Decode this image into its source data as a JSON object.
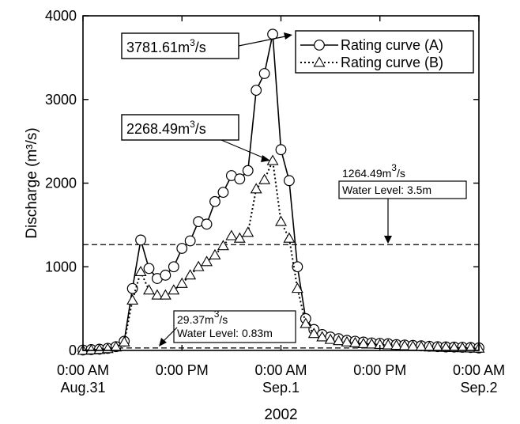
{
  "chart_data": {
    "type": "line",
    "xlabel": "2002",
    "ylabel": "Discharge (m³/s)",
    "ylim": [
      0,
      4000
    ],
    "xlim": [
      "2002-08-31 00:00",
      "2002-09-02 00:00"
    ],
    "y_ticks": [
      "0",
      "1000",
      "2000",
      "3000",
      "4000"
    ],
    "x_ticks": [
      {
        "line1": "0:00 AM",
        "line2": "Aug.31"
      },
      {
        "line1": "0:00 PM",
        "line2": ""
      },
      {
        "line1": "0:00 AM",
        "line2": "Sep.1"
      },
      {
        "line1": "0:00 PM",
        "line2": ""
      },
      {
        "line1": "0:00 AM",
        "line2": "Sep.2"
      }
    ],
    "legend_position": "top-right",
    "series": [
      {
        "name": "Rating curve (A)",
        "marker": "circle",
        "line_style": "solid",
        "x": [
          0,
          1,
          2,
          3,
          4,
          5,
          6,
          7,
          8,
          9,
          10,
          11,
          12,
          13,
          14,
          15,
          16,
          17,
          18,
          19,
          20,
          21,
          22,
          23,
          24,
          25,
          26,
          27,
          28,
          29,
          30,
          31,
          32,
          33,
          34,
          35,
          36,
          37,
          38,
          39,
          40,
          41,
          42,
          43,
          44,
          45,
          46,
          47,
          48
        ],
        "y": [
          5,
          10,
          15,
          25,
          45,
          110,
          740,
          1320,
          980,
          860,
          900,
          1000,
          1220,
          1310,
          1540,
          1510,
          1780,
          1890,
          2090,
          2050,
          2150,
          3110,
          3310,
          3780,
          2400,
          2030,
          1000,
          380,
          250,
          190,
          160,
          140,
          120,
          110,
          100,
          90,
          85,
          80,
          70,
          65,
          60,
          55,
          50,
          45,
          42,
          40,
          38,
          35,
          30
        ]
      },
      {
        "name": "Rating curve (B)",
        "marker": "triangle",
        "line_style": "dotted",
        "x": [
          0,
          1,
          2,
          3,
          4,
          5,
          6,
          7,
          8,
          9,
          10,
          11,
          12,
          13,
          14,
          15,
          16,
          17,
          18,
          19,
          20,
          21,
          22,
          23,
          24,
          25,
          26,
          27,
          28,
          29,
          30,
          31,
          32,
          33,
          34,
          35,
          36,
          37,
          38,
          39,
          40,
          41,
          42,
          43,
          44,
          45,
          46,
          47,
          48
        ],
        "y": [
          0,
          5,
          10,
          20,
          40,
          100,
          600,
          940,
          720,
          660,
          660,
          720,
          800,
          900,
          1000,
          1060,
          1140,
          1250,
          1370,
          1340,
          1410,
          1930,
          2040,
          2268,
          1540,
          1340,
          740,
          320,
          200,
          160,
          130,
          115,
          100,
          90,
          80,
          75,
          70,
          65,
          60,
          55,
          50,
          45,
          40,
          38,
          35,
          32,
          30,
          28,
          25
        ]
      }
    ],
    "reference_lines": [
      {
        "y": 1264.49,
        "style": "dashed"
      },
      {
        "y": 29.37,
        "style": "dashed"
      }
    ],
    "annotations": [
      {
        "id": "peak-a",
        "text": "3781.61m",
        "sup": "3",
        "tail": "/s",
        "boxed": true
      },
      {
        "id": "peak-b",
        "text": "2268.49m",
        "sup": "3",
        "tail": "/s",
        "boxed": true
      },
      {
        "id": "ref-high",
        "line1_text": "1264.49m",
        "line1_sup": "3",
        "line1_tail": "/s",
        "line2": "Water Level: 3.5m",
        "boxed_line2": true
      },
      {
        "id": "ref-low",
        "line1_text": "29.37m",
        "line1_sup": "3",
        "line1_tail": "/s",
        "line2": "Water Level: 0.83m",
        "boxed": true
      }
    ]
  }
}
